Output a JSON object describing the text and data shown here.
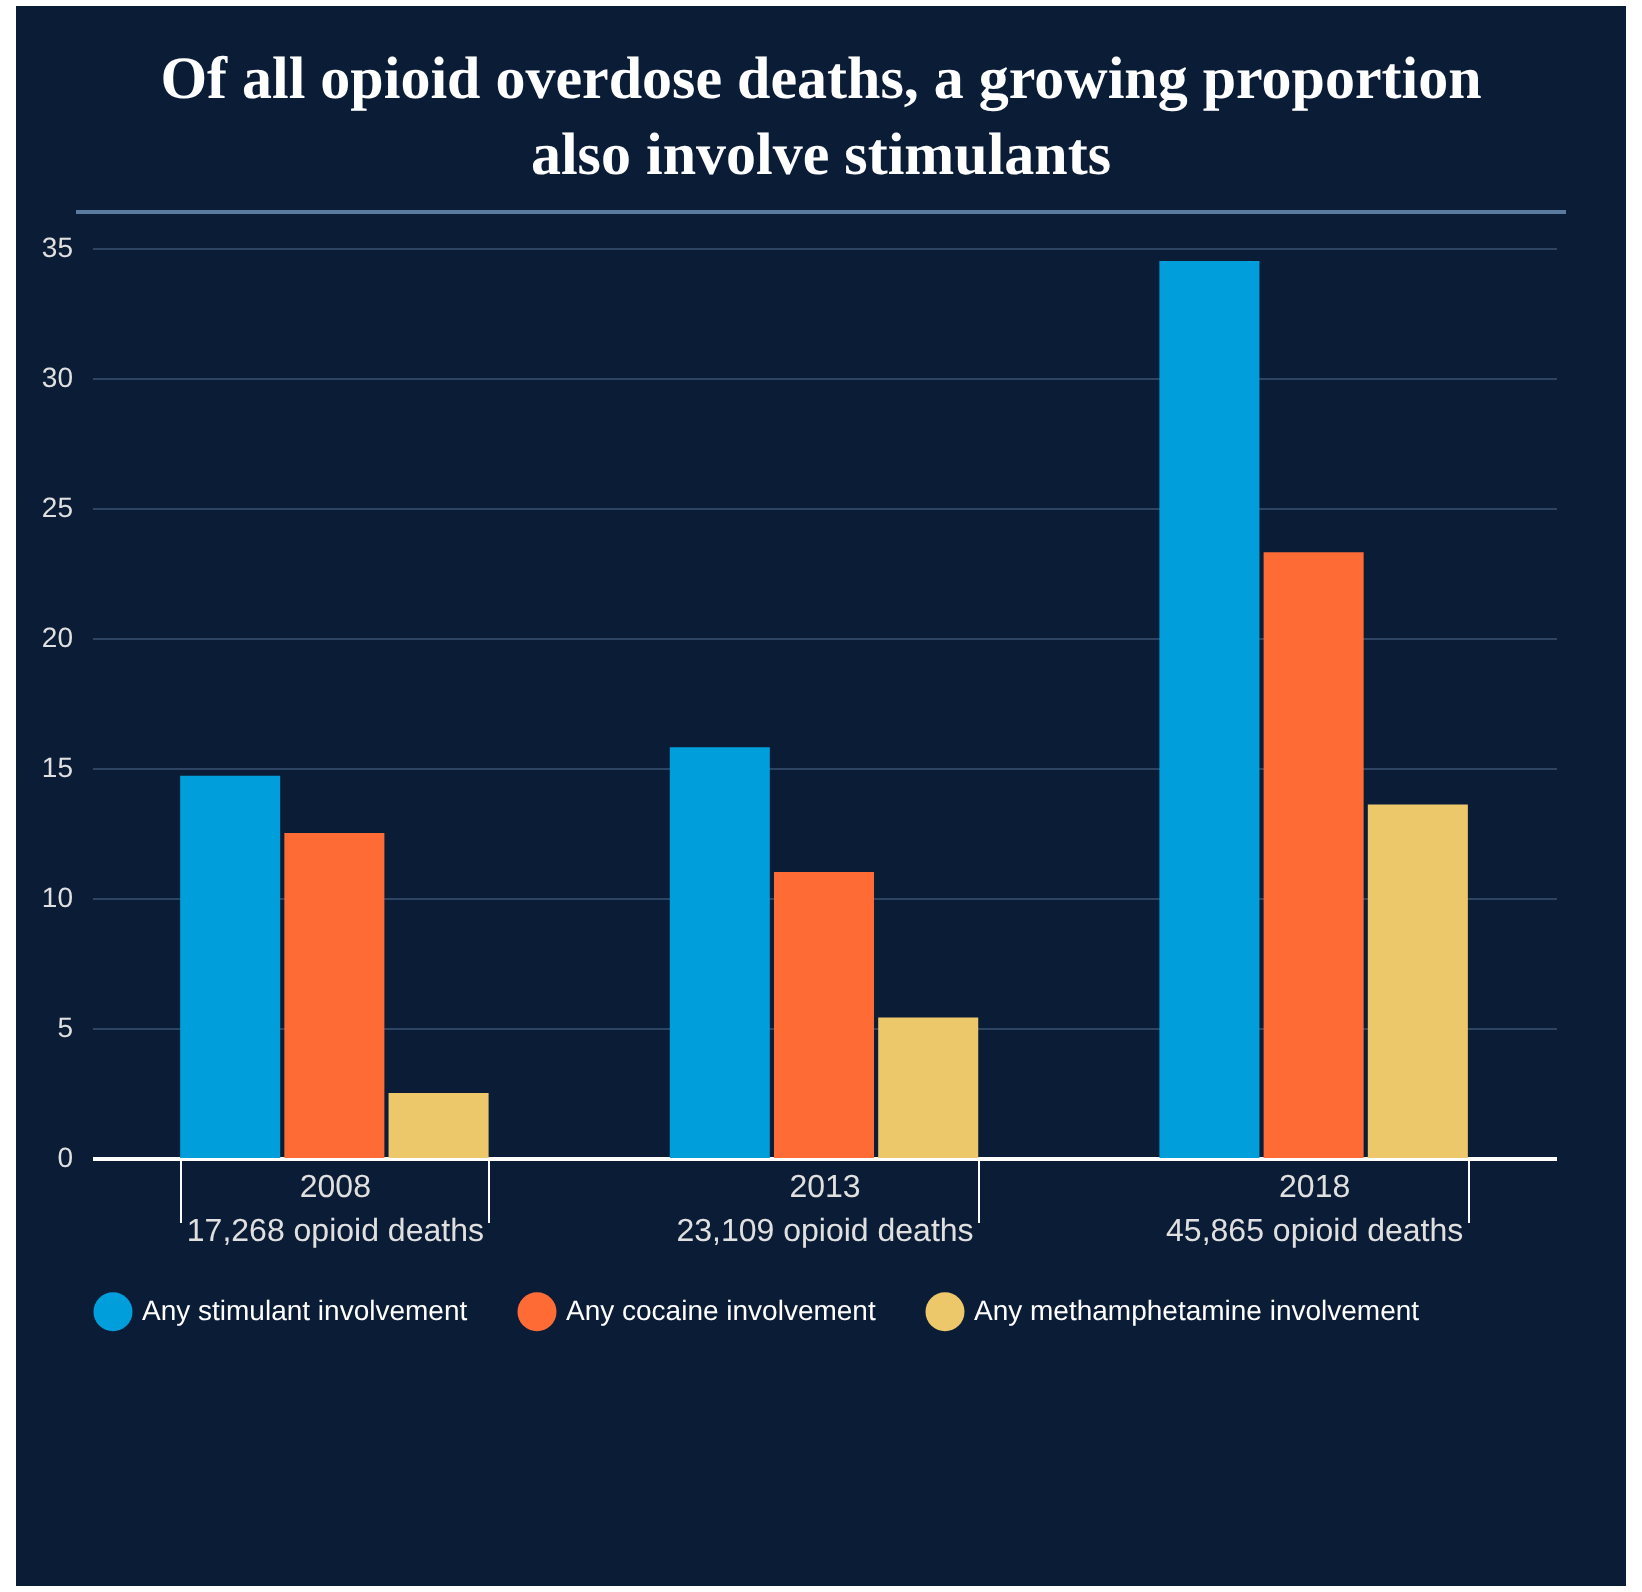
{
  "chart_data": {
    "type": "bar",
    "title": "Of all opioid overdose deaths, a growing proportion also involve stimulants",
    "categories": [
      "2008\n17,268 opioid deaths",
      "2013\n23,109 opioid deaths",
      "2018\n45,865 opioid deaths"
    ],
    "series": [
      {
        "name": "Any stimulant involvement",
        "color": "#009fdb",
        "values": [
          14.7,
          15.8,
          34.5
        ]
      },
      {
        "name": "Any cocaine involvement",
        "color": "#ff6b35",
        "values": [
          12.5,
          11.0,
          23.3
        ]
      },
      {
        "name": "Any methamphetamine involvement",
        "color": "#ecc86a",
        "values": [
          2.5,
          5.4,
          13.6
        ]
      }
    ],
    "ylim": [
      0,
      35
    ],
    "yticks": [
      0,
      5,
      10,
      15,
      20,
      25,
      30,
      35
    ],
    "grid": "y",
    "legend": "bottom"
  }
}
